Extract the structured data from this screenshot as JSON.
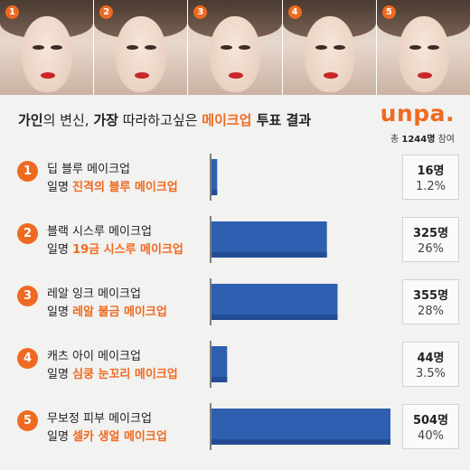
{
  "badges": [
    "1",
    "2",
    "3",
    "4",
    "5"
  ],
  "header": {
    "title_part1": "가인",
    "title_part2": "의 변신, ",
    "title_part3": "가장",
    "title_part4": " 따라하고싶은 ",
    "title_accent": "메이크업",
    "title_part5": " 투표 결과",
    "logo": "unpa.",
    "participants_prefix": "총 ",
    "participants_count": "1244명",
    "participants_suffix": " 참여"
  },
  "colors": {
    "accent": "#ef6a21",
    "bar": "#2f5fb0",
    "bar_dark": "#244c94"
  },
  "chart_data": {
    "type": "bar",
    "orientation": "horizontal",
    "categories": [
      "딥 블루 메이크업",
      "블랙 시스루 메이크업",
      "레알 잉크 메이크업",
      "캐츠 아이 메이크업",
      "무보정 피부 메이크업"
    ],
    "series": [
      {
        "values": [
          16,
          325,
          355,
          44,
          504
        ]
      }
    ],
    "percent_labels": [
      "1.2%",
      "26%",
      "28%",
      "3.5%",
      "40%"
    ],
    "count_labels": [
      "16명",
      "325명",
      "355명",
      "44명",
      "504명"
    ],
    "xlim": [
      0,
      504
    ]
  },
  "rows": [
    {
      "num": "1",
      "name": "딥 블루 메이크업",
      "alias_prefix": "일명 ",
      "alias_highlight": "진격의 블루 메이크업"
    },
    {
      "num": "2",
      "name": "블랙 시스루 메이크업",
      "alias_prefix": "일명 ",
      "alias_highlight": "19금 시스루 메이크업"
    },
    {
      "num": "3",
      "name": "레알 잉크 메이크업",
      "alias_prefix": "일명 ",
      "alias_highlight": "레알 불금 메이크업"
    },
    {
      "num": "4",
      "name": "캐츠 아이 메이크업",
      "alias_prefix": "일명 ",
      "alias_highlight": "심쿵 눈꼬리 메이크업"
    },
    {
      "num": "5",
      "name": "무보정 피부 메이크업",
      "alias_prefix": "일명 ",
      "alias_highlight": "셀카 생얼 메이크업"
    }
  ]
}
